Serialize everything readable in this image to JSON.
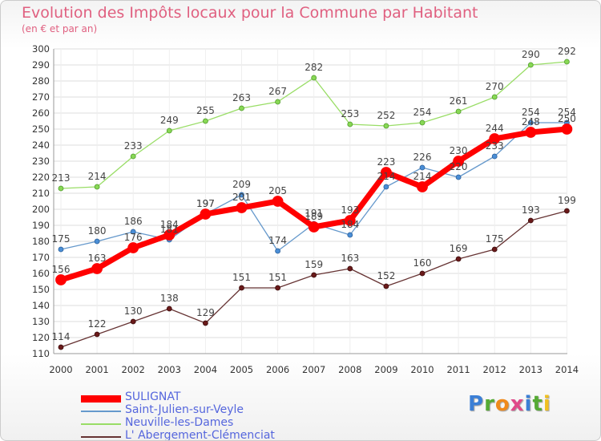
{
  "title": "Evolution des Impôts locaux pour la Commune par Habitant",
  "subtitle": "(en € et par an)",
  "logo": {
    "letters": [
      {
        "ch": "P",
        "color": "#3b7fd6"
      },
      {
        "ch": "r",
        "color": "#55aa33"
      },
      {
        "ch": "o",
        "color": "#f08a1c"
      },
      {
        "ch": "x",
        "color": "#e04a8a"
      },
      {
        "ch": "i",
        "color": "#3b7fd6"
      },
      {
        "ch": "t",
        "color": "#55aa33"
      },
      {
        "ch": "i",
        "color": "#f0c020"
      }
    ]
  },
  "chart_data": {
    "type": "line",
    "title": "Evolution des Impôts locaux pour la Commune par Habitant",
    "subtitle": "(en € et par an)",
    "xlabel": "",
    "ylabel": "",
    "x": [
      "2000",
      "2001",
      "2002",
      "2003",
      "2004",
      "2005",
      "2006",
      "2007",
      "2008",
      "2009",
      "2010",
      "2011",
      "2012",
      "2013",
      "2014"
    ],
    "ylim": [
      110,
      300
    ],
    "yticks": [
      110,
      120,
      130,
      140,
      150,
      160,
      170,
      180,
      190,
      200,
      210,
      220,
      230,
      240,
      250,
      260,
      270,
      280,
      290,
      300
    ],
    "grid": "horizontal",
    "legend_position": "bottom-left",
    "series": [
      {
        "name": "Neuville-les-Dames",
        "color": "#99dd66",
        "values": [
          213,
          214,
          233,
          249,
          255,
          263,
          267,
          282,
          253,
          252,
          254,
          261,
          270,
          290,
          292
        ]
      },
      {
        "name": "Saint-Julien-sur-Veyle",
        "color": "#6699cc",
        "values": [
          175,
          180,
          186,
          181,
          197,
          209,
          174,
          191,
          184,
          214,
          226,
          220,
          233,
          254,
          254
        ]
      },
      {
        "name": "L' Abergement-Clémenciat",
        "color": "#663333",
        "values": [
          114,
          122,
          130,
          138,
          129,
          151,
          151,
          159,
          163,
          152,
          160,
          169,
          175,
          193,
          199
        ]
      },
      {
        "name": "SULIGNAT",
        "color": "#ff0000",
        "values": [
          156,
          163,
          176,
          184,
          197,
          201,
          205,
          189,
          193,
          223,
          214,
          230,
          244,
          248,
          250
        ]
      }
    ],
    "legend_order": [
      "SULIGNAT",
      "Saint-Julien-sur-Veyle",
      "Neuville-les-Dames",
      "L' Abergement-Clémenciat"
    ]
  }
}
